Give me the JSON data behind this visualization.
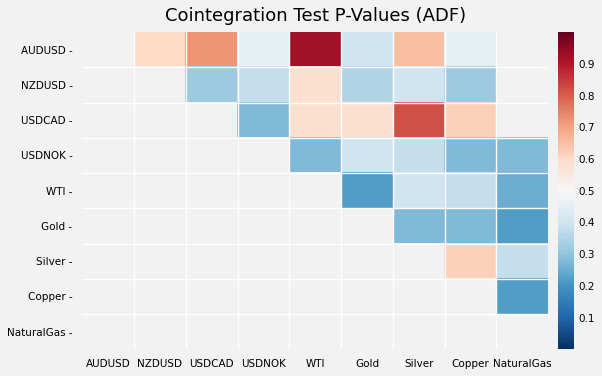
{
  "title": "Cointegration Test P-Values (ADF)",
  "labels": [
    "AUDUSD",
    "NZDUSD",
    "USDCAD",
    "USDNOK",
    "WTI",
    "Gold",
    "Silver",
    "Copper",
    "NaturalGas"
  ],
  "matrix": [
    [
      null,
      0.6,
      0.72,
      0.45,
      0.92,
      0.4,
      0.65,
      0.45,
      null
    ],
    [
      null,
      null,
      0.32,
      0.38,
      0.58,
      0.35,
      0.4,
      0.32,
      null
    ],
    [
      null,
      null,
      null,
      0.28,
      0.58,
      0.58,
      0.82,
      0.62,
      null
    ],
    [
      null,
      null,
      null,
      null,
      0.28,
      0.4,
      0.38,
      0.28,
      0.28
    ],
    [
      null,
      null,
      null,
      null,
      null,
      0.22,
      0.4,
      0.38,
      0.25
    ],
    [
      null,
      null,
      null,
      null,
      null,
      null,
      0.28,
      0.28,
      0.22
    ],
    [
      null,
      null,
      null,
      null,
      null,
      null,
      null,
      0.62,
      0.38
    ],
    [
      null,
      null,
      null,
      null,
      null,
      null,
      null,
      null,
      0.22
    ],
    [
      null,
      null,
      null,
      null,
      null,
      null,
      null,
      null,
      null
    ]
  ],
  "vmin": 0.0,
  "vmax": 1.0,
  "cmap": "RdBu_r",
  "colorbar_ticks": [
    0.1,
    0.2,
    0.3,
    0.4,
    0.5,
    0.6,
    0.7,
    0.8,
    0.9
  ],
  "figsize": [
    6.02,
    3.76
  ],
  "dpi": 100,
  "background_color": "#f2f2f2",
  "title_fontsize": 13
}
